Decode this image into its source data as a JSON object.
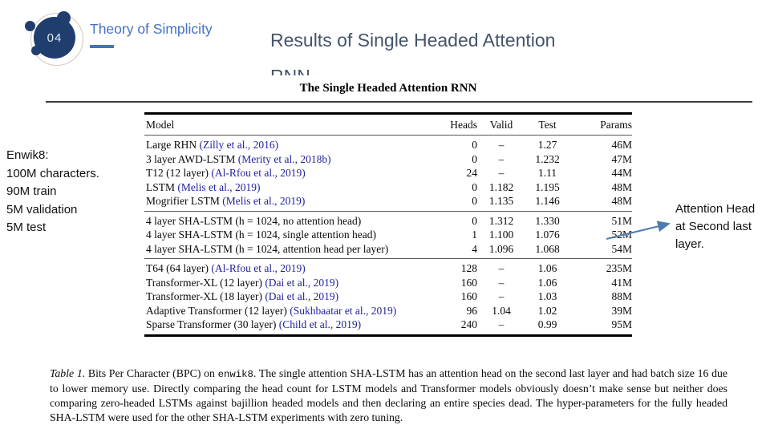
{
  "slide": {
    "badge_number": "04",
    "section_label": "Theory of Simplicity",
    "title_line1": "Results of Single Headed Attention",
    "title_line2": "RNN"
  },
  "colors": {
    "accent_blue": "#4472c4",
    "badge_navy": "#1f3e6d",
    "title_gray": "#44546a",
    "citation_blue": "#22229e",
    "arrow_blue": "#4e7cad"
  },
  "sidebar_note": {
    "lines": [
      "Enwik8:",
      "100M characters.",
      "90M train",
      "5M validation",
      "5M test"
    ]
  },
  "annotation": {
    "text": "Attention Head at Second last layer."
  },
  "paper": {
    "table_title": "The Single Headed Attention RNN",
    "columns": [
      "Model",
      "Heads",
      "Valid",
      "Test",
      "Params"
    ],
    "groups": [
      {
        "rows": [
          {
            "model": "Large RHN ",
            "cite": "(Zilly et al., 2016)",
            "heads": "0",
            "valid": "–",
            "test": "1.27",
            "params": "46M"
          },
          {
            "model": "3 layer AWD-LSTM ",
            "cite": "(Merity et al., 2018b)",
            "heads": "0",
            "valid": "–",
            "test": "1.232",
            "params": "47M"
          },
          {
            "model": "T12 (12 layer) ",
            "cite": "(Al-Rfou et al., 2019)",
            "heads": "24",
            "valid": "–",
            "test": "1.11",
            "params": "44M"
          },
          {
            "model": "LSTM ",
            "cite": "(Melis et al., 2019)",
            "heads": "0",
            "valid": "1.182",
            "test": "1.195",
            "params": "48M"
          },
          {
            "model": "Mogrifier LSTM ",
            "cite": "(Melis et al., 2019)",
            "heads": "0",
            "valid": "1.135",
            "test": "1.146",
            "params": "48M"
          }
        ]
      },
      {
        "rows": [
          {
            "model": "4 layer SHA-LSTM (h = 1024, no attention head)",
            "cite": "",
            "heads": "0",
            "valid": "1.312",
            "test": "1.330",
            "params": "51M"
          },
          {
            "model": "4 layer SHA-LSTM (h = 1024, single attention head)",
            "cite": "",
            "heads": "1",
            "valid": "1.100",
            "test": "1.076",
            "params": "52M"
          },
          {
            "model": "4 layer SHA-LSTM (h = 1024, attention head per layer)",
            "cite": "",
            "heads": "4",
            "valid": "1.096",
            "test": "1.068",
            "params": "54M"
          }
        ]
      },
      {
        "rows": [
          {
            "model": "T64 (64 layer) ",
            "cite": "(Al-Rfou et al., 2019)",
            "heads": "128",
            "valid": "–",
            "test": "1.06",
            "params": "235M"
          },
          {
            "model": "Transformer-XL (12 layer) ",
            "cite": "(Dai et al., 2019)",
            "heads": "160",
            "valid": "–",
            "test": "1.06",
            "params": "41M"
          },
          {
            "model": "Transformer-XL (18 layer) ",
            "cite": "(Dai et al., 2019)",
            "heads": "160",
            "valid": "–",
            "test": "1.03",
            "params": "88M"
          },
          {
            "model": "Adaptive Transformer (12 layer) ",
            "cite": "(Sukhbaatar et al., 2019)",
            "heads": "96",
            "valid": "1.04",
            "test": "1.02",
            "params": "39M"
          },
          {
            "model": "Sparse Transformer (30 layer) ",
            "cite": "(Child et al., 2019)",
            "heads": "240",
            "valid": "–",
            "test": "0.99",
            "params": "95M"
          }
        ]
      }
    ],
    "caption": {
      "label": "Table 1.",
      "text1": " Bits Per Character (BPC) on ",
      "code": "enwik8",
      "text2": ". The single attention SHA-LSTM has an attention head on the second last layer and had batch size 16 due to lower memory use. Directly comparing the head count for LSTM models and Transformer models obviously doesn’t make sense but neither does comparing zero-headed LSTMs against bajillion headed models and then declaring an entire species dead. The hyper-parameters for the fully headed SHA-LSTM were used for the other SHA-LSTM experiments with zero tuning."
    }
  }
}
